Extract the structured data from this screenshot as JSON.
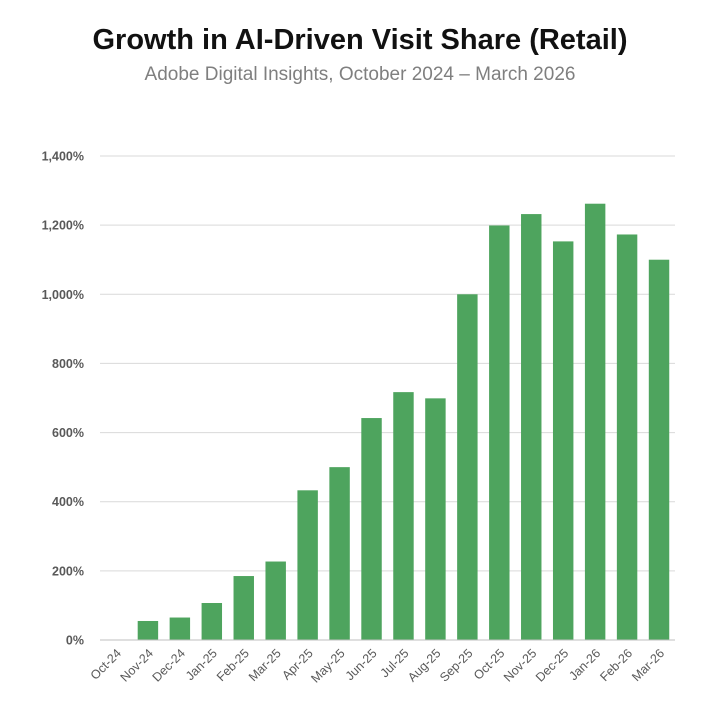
{
  "title": "Growth in AI-Driven Visit Share (Retail)",
  "subtitle": "Adobe Digital Insights, October 2024 – March 2026",
  "chart_data": {
    "type": "bar",
    "title": "Growth in AI-Driven Visit Share (Retail)",
    "subtitle": "Adobe Digital Insights, October 2024 – March 2026",
    "categories": [
      "Oct-24",
      "Nov-24",
      "Dec-24",
      "Jan-25",
      "Feb-25",
      "Mar-25",
      "Apr-25",
      "May-25",
      "Jun-25",
      "Jul-25",
      "Aug-25",
      "Sep-25",
      "Oct-25",
      "Nov-25",
      "Dec-25",
      "Jan-26",
      "Feb-26",
      "Mar-26"
    ],
    "values": [
      0,
      55,
      65,
      107,
      185,
      227,
      433,
      500,
      642,
      717,
      699,
      1000,
      1199,
      1232,
      1153,
      1262,
      1173,
      1100
    ],
    "ylim": [
      0,
      1400
    ],
    "yticks": [
      0,
      200,
      400,
      600,
      800,
      1000,
      1200,
      1400
    ],
    "ytick_labels": [
      "0%",
      "200%",
      "400%",
      "600%",
      "800%",
      "1,000%",
      "1,200%",
      "1,400%"
    ],
    "xlabel": "",
    "ylabel": "",
    "grid": true,
    "bar_color": "#4ea45e",
    "grid_color": "#d9d9d9"
  }
}
